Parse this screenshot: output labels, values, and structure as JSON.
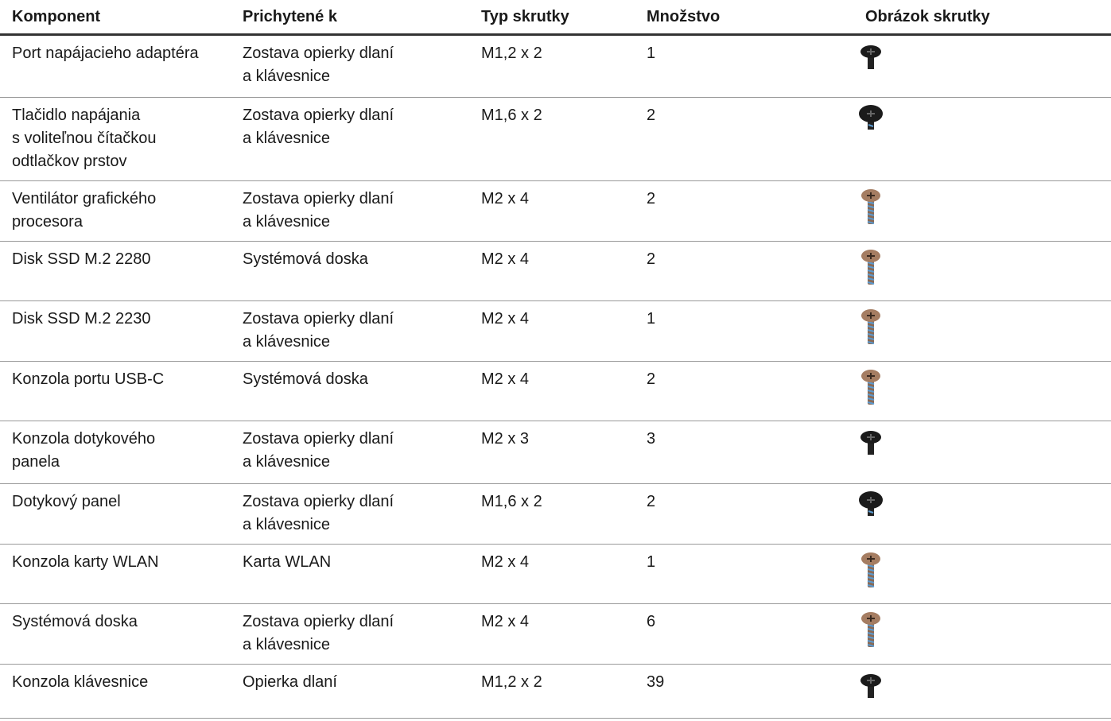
{
  "table": {
    "header": [
      "Komponent",
      "Prichytené k",
      "Typ skrutky",
      "Množstvo",
      "Obrázok skrutky"
    ],
    "rows": [
      [
        [
          "Port napájacieho adaptéra"
        ],
        [
          "Zostava opierky dlaní",
          "a klávesnice"
        ],
        [
          "M1,2 x 2"
        ],
        [
          "1"
        ]
      ],
      [
        [
          "Tlačidlo napájania",
          "s voliteľnou čítačkou",
          "odtlačkov prstov"
        ],
        [
          "Zostava opierky dlaní",
          "a klávesnice"
        ],
        [
          "M1,6 x 2"
        ],
        [
          "2"
        ]
      ],
      [
        [
          "Ventilátor grafického",
          "procesora"
        ],
        [
          "Zostava opierky dlaní",
          "a klávesnice"
        ],
        [
          "M2 x 4"
        ],
        [
          "2"
        ]
      ],
      [
        [
          "Disk SSD M.2 2280"
        ],
        [
          "Systémová doska"
        ],
        [
          "M2 x 4"
        ],
        [
          "2"
        ]
      ],
      [
        [
          "Disk SSD M.2 2230"
        ],
        [
          "Zostava opierky dlaní",
          "a klávesnice"
        ],
        [
          "M2 x 4"
        ],
        [
          "1"
        ]
      ],
      [
        [
          "Konzola portu USB-C"
        ],
        [
          "Systémová doska"
        ],
        [
          "M2 x 4"
        ],
        [
          "2"
        ]
      ],
      [
        [
          "Konzola dotykového",
          "panela"
        ],
        [
          "Zostava opierky dlaní",
          "a klávesnice"
        ],
        [
          "M2 x 3"
        ],
        [
          "3"
        ]
      ],
      [
        [
          "Dotykový panel"
        ],
        [
          "Zostava opierky dlaní",
          "a klávesnice"
        ],
        [
          "M1,6 x 2"
        ],
        [
          "2"
        ]
      ],
      [
        [
          "Konzola karty WLAN"
        ],
        [
          "Karta WLAN"
        ],
        [
          "M2 x 4"
        ],
        [
          "1"
        ]
      ],
      [
        [
          "Systémová doska"
        ],
        [
          "Zostava opierky dlaní",
          "a klávesnice"
        ],
        [
          "M2 x 4"
        ],
        [
          "6"
        ]
      ],
      [
        [
          "Konzola klávesnice"
        ],
        [
          "Opierka dlaní"
        ],
        [
          "M1,2 x 2"
        ],
        [
          "39"
        ]
      ]
    ]
  }
}
